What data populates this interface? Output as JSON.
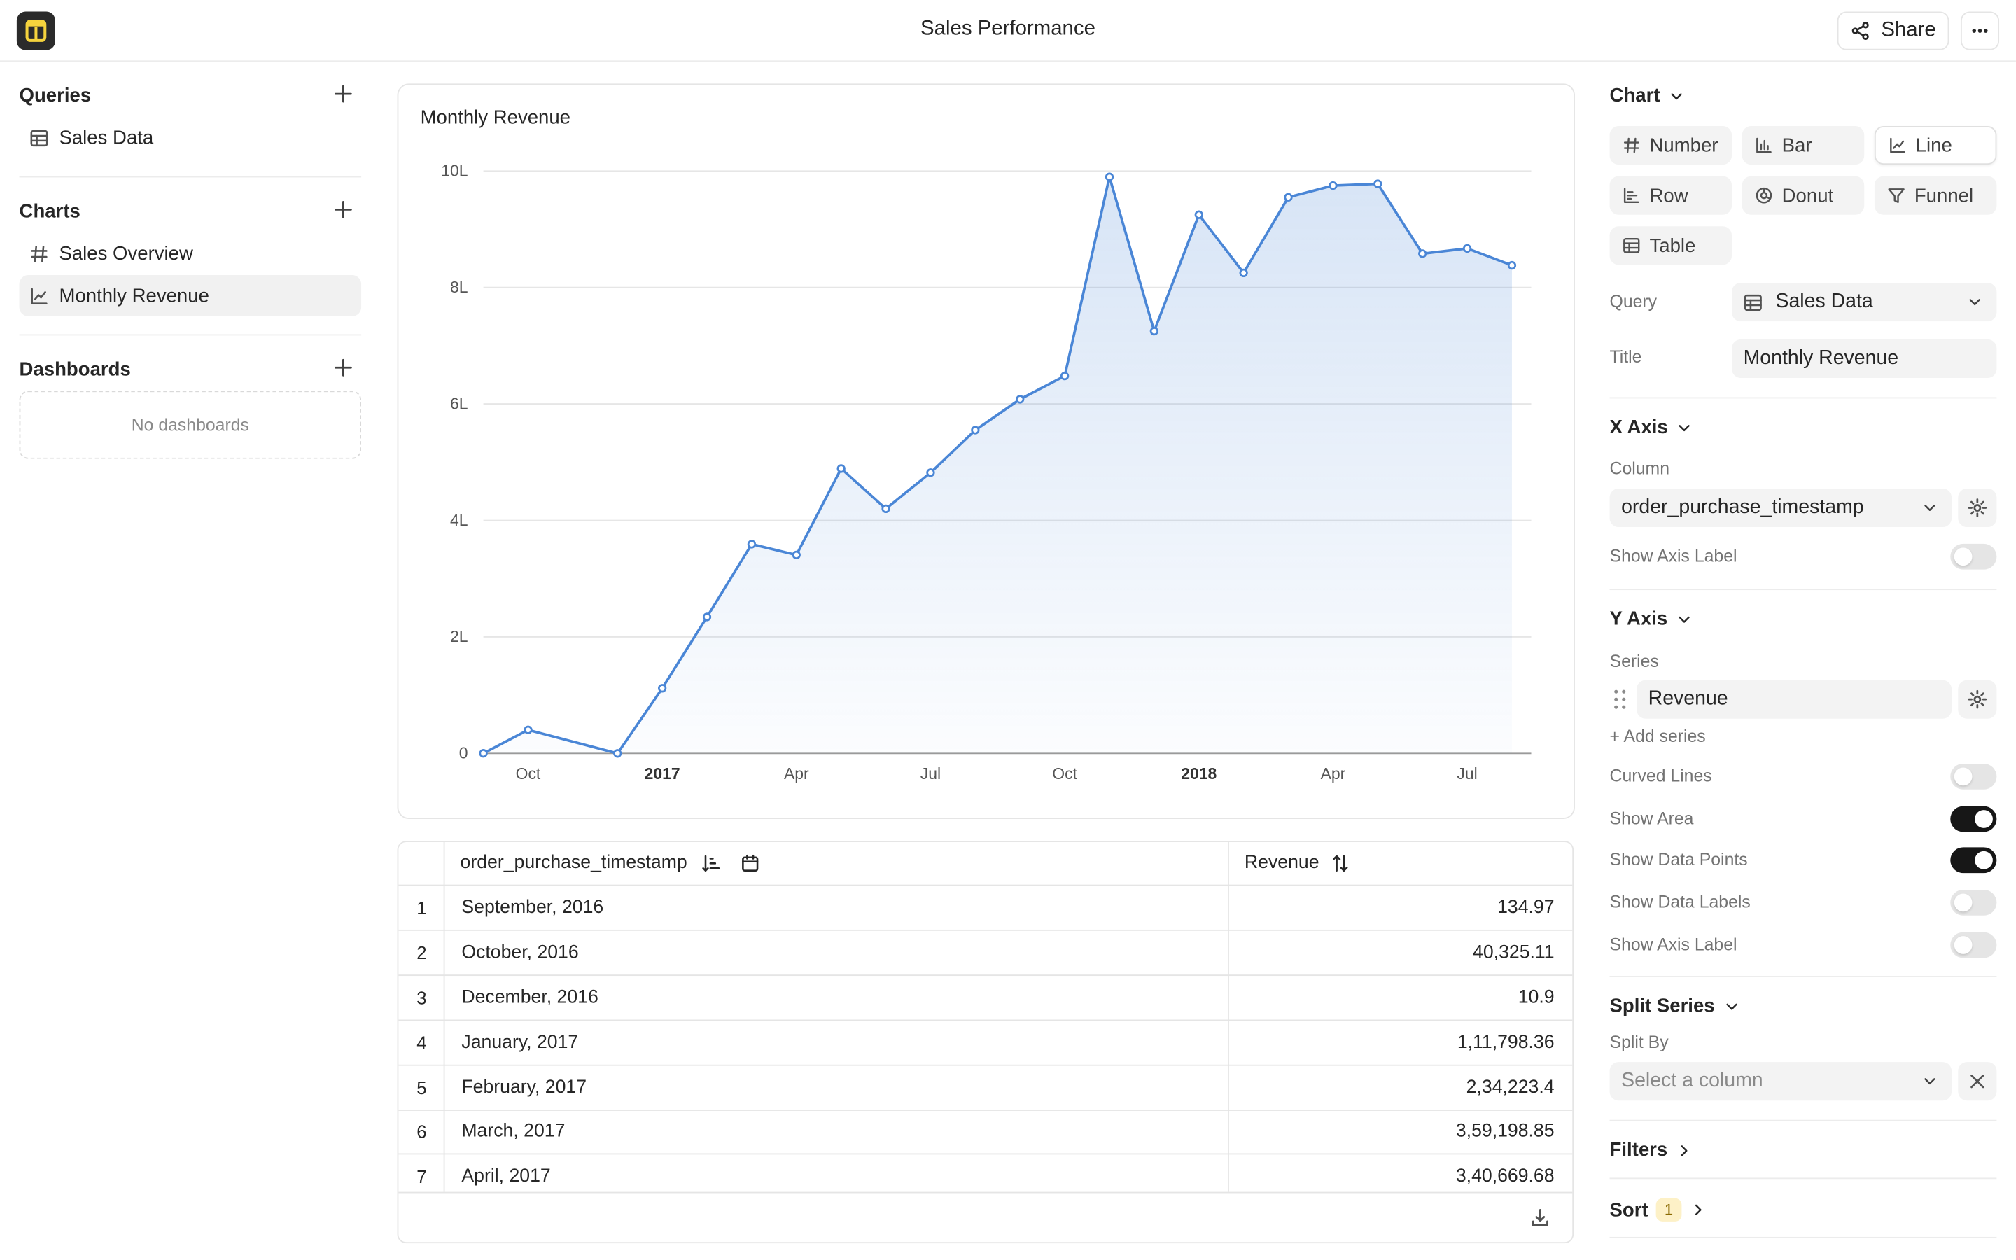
{
  "app": {
    "title": "Sales Performance",
    "share_label": "Share"
  },
  "sidebar": {
    "queries": {
      "title": "Queries",
      "items": [
        {
          "label": "Sales Data",
          "icon": "table-icon"
        }
      ]
    },
    "charts": {
      "title": "Charts",
      "items": [
        {
          "label": "Sales Overview",
          "icon": "hash-icon"
        },
        {
          "label": "Monthly Revenue",
          "icon": "line-chart-icon",
          "active": true
        }
      ]
    },
    "dashboards": {
      "title": "Dashboards",
      "empty_text": "No dashboards"
    }
  },
  "chart_card": {
    "title": "Monthly Revenue"
  },
  "chart_data": {
    "type": "area",
    "title": "Monthly Revenue",
    "x_tick_labels": [
      "Oct",
      "2017",
      "Apr",
      "Jul",
      "Oct",
      "2018",
      "Apr",
      "Jul"
    ],
    "y_tick_labels": [
      "0",
      "2L",
      "4L",
      "6L",
      "8L",
      "10L"
    ],
    "ylim": [
      0,
      1000000
    ],
    "grid": true,
    "series": [
      {
        "name": "Revenue",
        "x": [
          "2016-09",
          "2016-10",
          "2016-12",
          "2017-01",
          "2017-02",
          "2017-03",
          "2017-04",
          "2017-05",
          "2017-06",
          "2017-07",
          "2017-08",
          "2017-09",
          "2017-10",
          "2017-11",
          "2017-12",
          "2018-01",
          "2018-02",
          "2018-03",
          "2018-04",
          "2018-05",
          "2018-06",
          "2018-07",
          "2018-08"
        ],
        "values": [
          134.97,
          40325.11,
          10.9,
          111798.36,
          234223.4,
          359198.85,
          340669.68,
          489000,
          420000,
          482000,
          555000,
          608000,
          648000,
          990000,
          725000,
          925000,
          825000,
          955000,
          975000,
          978000,
          858000,
          867000,
          838000
        ],
        "color": "#4a86d6",
        "show_area": true,
        "show_points": true
      }
    ]
  },
  "table": {
    "columns": [
      "order_purchase_timestamp",
      "Revenue"
    ],
    "rows": [
      {
        "n": "1",
        "date": "September, 2016",
        "revenue": "134.97"
      },
      {
        "n": "2",
        "date": "October, 2016",
        "revenue": "40,325.11"
      },
      {
        "n": "3",
        "date": "December, 2016",
        "revenue": "10.9"
      },
      {
        "n": "4",
        "date": "January, 2017",
        "revenue": "1,11,798.36"
      },
      {
        "n": "5",
        "date": "February, 2017",
        "revenue": "2,34,223.4"
      },
      {
        "n": "6",
        "date": "March, 2017",
        "revenue": "3,59,198.85"
      },
      {
        "n": "7",
        "date": "April, 2017",
        "revenue": "3,40,669.68"
      }
    ]
  },
  "panel": {
    "chart_section": "Chart",
    "chart_types": [
      "Number",
      "Bar",
      "Line",
      "Row",
      "Donut",
      "Funnel",
      "Table"
    ],
    "selected_type": "Line",
    "query_label": "Query",
    "query_value": "Sales Data",
    "title_label": "Title",
    "title_value": "Monthly Revenue",
    "x_axis": {
      "title": "X Axis",
      "column_label": "Column",
      "column_value": "order_purchase_timestamp",
      "show_axis_label": "Show Axis Label"
    },
    "y_axis": {
      "title": "Y Axis",
      "series_label": "Series",
      "series_value": "Revenue",
      "add_series": "+ Add series"
    },
    "options": [
      {
        "label": "Curved Lines",
        "on": false
      },
      {
        "label": "Show Area",
        "on": true
      },
      {
        "label": "Show Data Points",
        "on": true
      },
      {
        "label": "Show Data Labels",
        "on": false
      },
      {
        "label": "Show Axis Label",
        "on": false
      }
    ],
    "split": {
      "title": "Split Series",
      "label": "Split By",
      "placeholder": "Select a column"
    },
    "filters_title": "Filters",
    "sort_title": "Sort",
    "sort_count": "1"
  }
}
